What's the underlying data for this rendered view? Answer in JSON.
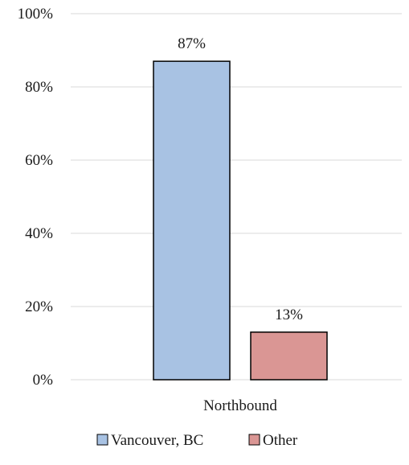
{
  "chart_data": {
    "type": "bar",
    "categories": [
      "Northbound"
    ],
    "series": [
      {
        "name": "Vancouver, BC",
        "values": [
          87
        ],
        "data_label": "87%",
        "color": "#a8c2e3"
      },
      {
        "name": "Other",
        "values": [
          13
        ],
        "data_label": "13%",
        "color": "#da9694"
      }
    ],
    "ylim": [
      0,
      100
    ],
    "y_ticks": [
      0,
      20,
      40,
      60,
      80,
      100
    ],
    "y_tick_labels": [
      "0%",
      "20%",
      "40%",
      "60%",
      "80%",
      "100%"
    ],
    "title": "",
    "xlabel": "",
    "ylabel": "",
    "grid": true,
    "legend_position": "bottom",
    "colors": {
      "gridline": "#d9d9d9",
      "bar_border": "#000000"
    }
  }
}
